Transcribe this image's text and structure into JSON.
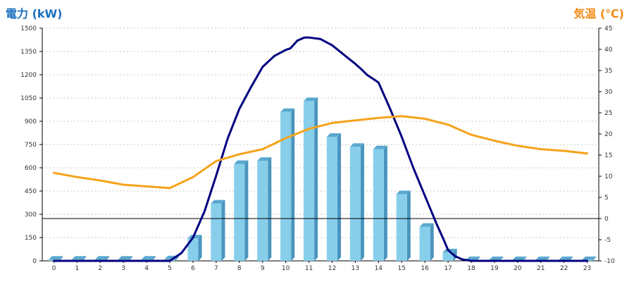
{
  "chart_data": {
    "type": "bar",
    "categories": [
      "0",
      "1",
      "2",
      "3",
      "4",
      "5",
      "6",
      "7",
      "8",
      "9",
      "10",
      "11",
      "12",
      "13",
      "14",
      "15",
      "16",
      "17",
      "18",
      "19",
      "20",
      "21",
      "22",
      "23"
    ],
    "y_left": {
      "title": "電力 (kW)",
      "ylim": [
        0,
        1500
      ],
      "ticks": [
        "0",
        "150",
        "300",
        "450",
        "600",
        "750",
        "900",
        "1050",
        "1200",
        "1350",
        "1500"
      ],
      "color": "#1a6fbf"
    },
    "y_right": {
      "title": "気温 (℃)",
      "ylim": [
        -10,
        45
      ],
      "ticks": [
        "-10",
        "-5",
        "0",
        "5",
        "10",
        "15",
        "20",
        "25",
        "30",
        "35",
        "40",
        "45"
      ],
      "color": "#f08a12"
    },
    "grid": true,
    "bars": {
      "axis": "left",
      "color": "#87ceeb",
      "values": [
        8,
        8,
        8,
        8,
        8,
        10,
        145,
        370,
        625,
        645,
        960,
        1030,
        800,
        735,
        720,
        430,
        220,
        55,
        5,
        5,
        5,
        5,
        5,
        5
      ]
    },
    "lines": [
      {
        "axis": "left",
        "color": "#000080",
        "x": [
          0,
          1,
          2,
          3,
          4,
          5,
          5.5,
          6,
          6.5,
          7,
          7.5,
          8,
          8.5,
          9,
          9.5,
          10,
          10.2,
          10.5,
          10.8,
          11,
          11.5,
          12,
          12.5,
          13,
          13.3,
          13.5,
          14,
          14.5,
          15,
          15.5,
          16,
          16.5,
          16.8,
          17,
          17.3,
          17.6,
          18,
          19,
          20,
          21,
          22,
          23
        ],
        "values": [
          0,
          0,
          0,
          0,
          0,
          0,
          50,
          150,
          320,
          550,
          790,
          980,
          1120,
          1250,
          1320,
          1360,
          1370,
          1420,
          1440,
          1440,
          1430,
          1390,
          1330,
          1270,
          1230,
          1200,
          1150,
          980,
          800,
          600,
          420,
          240,
          140,
          70,
          30,
          10,
          0,
          0,
          0,
          0,
          0,
          0
        ]
      },
      {
        "axis": "right",
        "color": "#f5a31a",
        "x": [
          0,
          1,
          2,
          3,
          4,
          5,
          6,
          7,
          8,
          9,
          10,
          11,
          12,
          13,
          14,
          15,
          16,
          17,
          18,
          19,
          20,
          21,
          22,
          23
        ],
        "values": [
          10.8,
          9.8,
          9.0,
          8.0,
          7.6,
          7.2,
          9.8,
          13.6,
          15.2,
          16.4,
          19.0,
          21.2,
          22.6,
          23.2,
          23.8,
          24.2,
          23.6,
          22.2,
          19.8,
          18.4,
          17.2,
          16.4,
          16.0,
          15.4
        ]
      }
    ],
    "reference_line": {
      "axis": "right",
      "value": 0
    }
  }
}
